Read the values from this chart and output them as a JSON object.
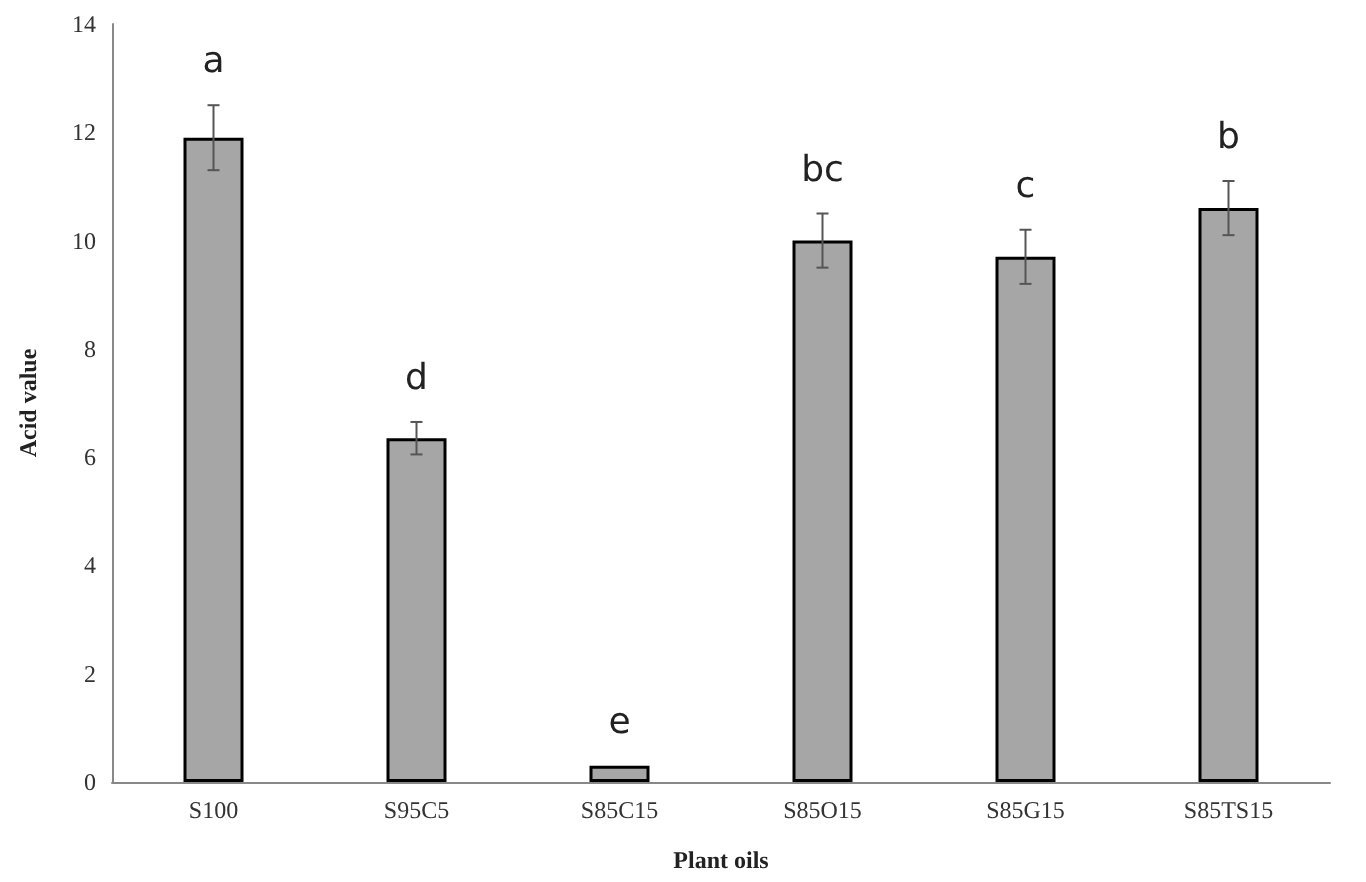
{
  "chart_data": {
    "type": "bar",
    "xlabel": "Plant oils",
    "ylabel": "Acid value",
    "categories": [
      "S100",
      "S95C5",
      "S85C15",
      "S85O15",
      "S85G15",
      "S85TS15"
    ],
    "values": [
      11.9,
      6.35,
      0.3,
      10.0,
      9.7,
      10.6
    ],
    "errors": [
      0.6,
      0.3,
      null,
      0.5,
      0.5,
      0.5
    ],
    "color": "#a6a6a6",
    "ylim": [
      0,
      14
    ],
    "yticks": [
      0,
      2,
      4,
      6,
      8,
      10,
      12,
      14
    ],
    "grid": false,
    "annotations": [
      "a",
      "d",
      "e",
      "bc",
      "c",
      "b"
    ]
  }
}
